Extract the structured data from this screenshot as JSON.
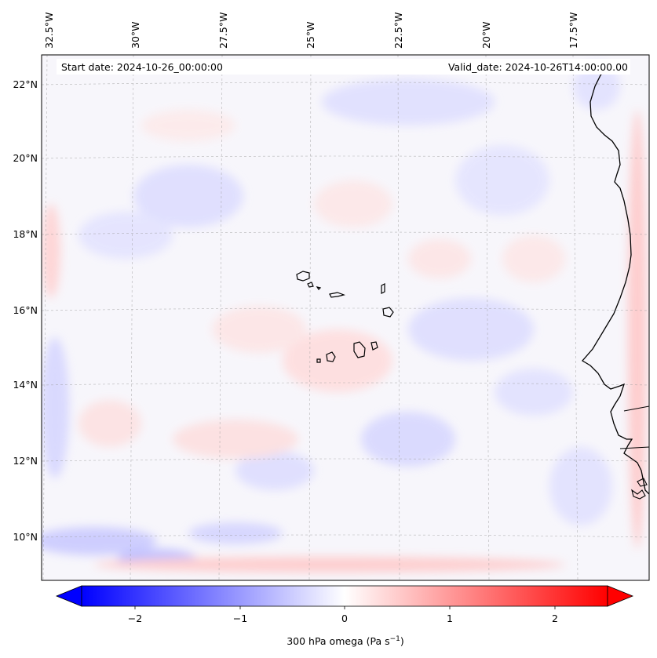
{
  "map": {
    "start_date": "Start date: 2024-10-26_00:00:00",
    "valid_date": "Valid_date: 2024-10-26T14:00:00.00",
    "longitude_labels": [
      "32.5°W",
      "30°W",
      "27.5°W",
      "25°W",
      "22.5°W",
      "20°W",
      "17.5°W"
    ],
    "latitude_labels": [
      "22°N",
      "20°N",
      "18°N",
      "16°N",
      "14°N",
      "12°N",
      "10°N"
    ],
    "field": "300 hPa omega",
    "coastline_color": "#000000"
  },
  "colorbar": {
    "label_main": "300 hPa omega (Pa s",
    "label_exp": "−1",
    "label_close": ")",
    "ticks": [
      "−2",
      "−1",
      "0",
      "1",
      "2"
    ],
    "range": [
      -2.6,
      2.6
    ],
    "colors": {
      "negative": "#0000ff",
      "zero": "#ffffff",
      "positive": "#ff0000"
    }
  }
}
